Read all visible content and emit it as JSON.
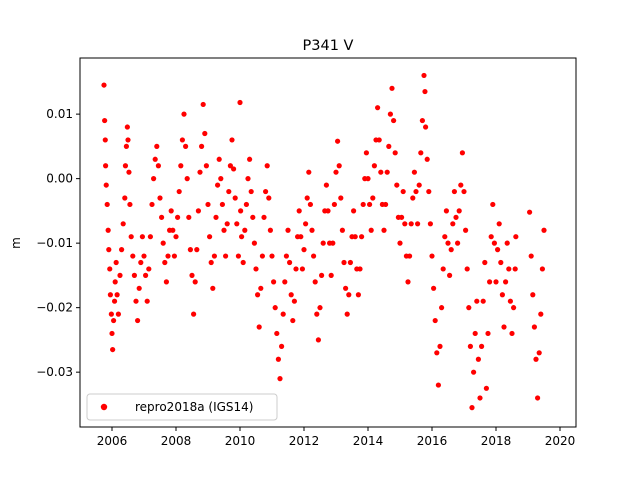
{
  "chart_data": {
    "type": "scatter",
    "title": "P341 V",
    "xlabel": "",
    "ylabel": "m",
    "xlim": [
      2005.0,
      2020.5
    ],
    "ylim": [
      -0.0385,
      0.0187
    ],
    "x_ticks": [
      2006,
      2008,
      2010,
      2012,
      2014,
      2016,
      2018,
      2020
    ],
    "x_tick_labels": [
      "2006",
      "2008",
      "2010",
      "2012",
      "2014",
      "2016",
      "2018",
      "2020"
    ],
    "y_ticks": [
      0.01,
      0.0,
      -0.01,
      -0.02,
      -0.03
    ],
    "y_tick_labels": [
      "0.01",
      "0.00",
      "−0.01",
      "−0.02",
      "−0.03"
    ],
    "grid": false,
    "legend_position": "lower-left",
    "series": [
      {
        "name": "repro2018a (IGS14)",
        "color": "#ff0000",
        "marker": "circle",
        "points": [
          [
            2005.75,
            0.0145
          ],
          [
            2005.77,
            0.009
          ],
          [
            2005.79,
            0.006
          ],
          [
            2005.8,
            0.002
          ],
          [
            2005.82,
            -0.001
          ],
          [
            2005.85,
            -0.004
          ],
          [
            2005.88,
            -0.008
          ],
          [
            2005.9,
            -0.011
          ],
          [
            2005.93,
            -0.014
          ],
          [
            2005.95,
            -0.018
          ],
          [
            2005.98,
            -0.021
          ],
          [
            2006.0,
            -0.024
          ],
          [
            2006.02,
            -0.0265
          ],
          [
            2006.05,
            -0.022
          ],
          [
            2006.08,
            -0.019
          ],
          [
            2006.1,
            -0.016
          ],
          [
            2006.13,
            -0.013
          ],
          [
            2006.16,
            -0.018
          ],
          [
            2006.2,
            -0.021
          ],
          [
            2006.25,
            -0.015
          ],
          [
            2006.3,
            -0.011
          ],
          [
            2006.35,
            -0.007
          ],
          [
            2006.4,
            -0.003
          ],
          [
            2006.42,
            0.002
          ],
          [
            2006.45,
            0.005
          ],
          [
            2006.48,
            0.008
          ],
          [
            2006.5,
            0.006
          ],
          [
            2006.53,
            0.001
          ],
          [
            2006.56,
            -0.004
          ],
          [
            2006.6,
            -0.009
          ],
          [
            2006.65,
            -0.012
          ],
          [
            2006.7,
            -0.015
          ],
          [
            2006.75,
            -0.019
          ],
          [
            2006.8,
            -0.022
          ],
          [
            2006.85,
            -0.017
          ],
          [
            2006.9,
            -0.013
          ],
          [
            2006.95,
            -0.009
          ],
          [
            2007.0,
            -0.012
          ],
          [
            2007.05,
            -0.015
          ],
          [
            2007.1,
            -0.019
          ],
          [
            2007.15,
            -0.014
          ],
          [
            2007.2,
            -0.009
          ],
          [
            2007.25,
            -0.004
          ],
          [
            2007.3,
            0.0
          ],
          [
            2007.35,
            0.003
          ],
          [
            2007.4,
            0.005
          ],
          [
            2007.45,
            0.002
          ],
          [
            2007.5,
            -0.003
          ],
          [
            2007.55,
            -0.006
          ],
          [
            2007.6,
            -0.01
          ],
          [
            2007.65,
            -0.013
          ],
          [
            2007.7,
            -0.016
          ],
          [
            2007.75,
            -0.012
          ],
          [
            2007.8,
            -0.008
          ],
          [
            2007.85,
            -0.005
          ],
          [
            2007.9,
            -0.008
          ],
          [
            2007.95,
            -0.012
          ],
          [
            2008.0,
            -0.009
          ],
          [
            2008.05,
            -0.006
          ],
          [
            2008.1,
            -0.002
          ],
          [
            2008.15,
            0.002
          ],
          [
            2008.2,
            0.006
          ],
          [
            2008.25,
            0.01
          ],
          [
            2008.3,
            0.005
          ],
          [
            2008.35,
            0.0
          ],
          [
            2008.4,
            -0.006
          ],
          [
            2008.45,
            -0.011
          ],
          [
            2008.5,
            -0.015
          ],
          [
            2008.55,
            -0.021
          ],
          [
            2008.6,
            -0.016
          ],
          [
            2008.65,
            -0.011
          ],
          [
            2008.7,
            -0.005
          ],
          [
            2008.75,
            0.001
          ],
          [
            2008.8,
            0.005
          ],
          [
            2008.85,
            0.0115
          ],
          [
            2008.9,
            0.007
          ],
          [
            2008.95,
            0.002
          ],
          [
            2009.0,
            -0.004
          ],
          [
            2009.05,
            -0.009
          ],
          [
            2009.1,
            -0.013
          ],
          [
            2009.15,
            -0.017
          ],
          [
            2009.2,
            -0.012
          ],
          [
            2009.25,
            -0.006
          ],
          [
            2009.3,
            -0.001
          ],
          [
            2009.35,
            0.003
          ],
          [
            2009.4,
            0.0
          ],
          [
            2009.45,
            -0.004
          ],
          [
            2009.5,
            -0.008
          ],
          [
            2009.55,
            -0.012
          ],
          [
            2009.6,
            -0.007
          ],
          [
            2009.65,
            -0.002
          ],
          [
            2009.7,
            0.002
          ],
          [
            2009.75,
            0.006
          ],
          [
            2009.8,
            0.0015
          ],
          [
            2009.85,
            -0.003
          ],
          [
            2009.9,
            -0.007
          ],
          [
            2009.95,
            -0.012
          ],
          [
            2010.0,
            0.0118
          ],
          [
            2010.02,
            -0.005
          ],
          [
            2010.05,
            -0.009
          ],
          [
            2010.1,
            -0.013
          ],
          [
            2010.15,
            -0.008
          ],
          [
            2010.2,
            -0.004
          ],
          [
            2010.25,
            0.0
          ],
          [
            2010.3,
            0.003
          ],
          [
            2010.35,
            -0.002
          ],
          [
            2010.4,
            -0.006
          ],
          [
            2010.45,
            -0.01
          ],
          [
            2010.5,
            -0.014
          ],
          [
            2010.55,
            -0.018
          ],
          [
            2010.6,
            -0.023
          ],
          [
            2010.65,
            -0.017
          ],
          [
            2010.7,
            -0.012
          ],
          [
            2010.75,
            -0.006
          ],
          [
            2010.8,
            -0.002
          ],
          [
            2010.85,
            0.002
          ],
          [
            2010.9,
            -0.003
          ],
          [
            2010.95,
            -0.008
          ],
          [
            2011.0,
            -0.012
          ],
          [
            2011.05,
            -0.016
          ],
          [
            2011.1,
            -0.02
          ],
          [
            2011.15,
            -0.024
          ],
          [
            2011.2,
            -0.028
          ],
          [
            2011.25,
            -0.031
          ],
          [
            2011.3,
            -0.026
          ],
          [
            2011.35,
            -0.021
          ],
          [
            2011.4,
            -0.016
          ],
          [
            2011.45,
            -0.012
          ],
          [
            2011.5,
            -0.008
          ],
          [
            2011.55,
            -0.013
          ],
          [
            2011.6,
            -0.018
          ],
          [
            2011.65,
            -0.022
          ],
          [
            2011.7,
            -0.019
          ],
          [
            2011.75,
            -0.014
          ],
          [
            2011.8,
            -0.009
          ],
          [
            2011.85,
            -0.005
          ],
          [
            2011.9,
            -0.009
          ],
          [
            2011.95,
            -0.014
          ],
          [
            2012.0,
            -0.011
          ],
          [
            2012.05,
            -0.007
          ],
          [
            2012.1,
            -0.003
          ],
          [
            2012.15,
            0.001
          ],
          [
            2012.2,
            -0.004
          ],
          [
            2012.25,
            -0.008
          ],
          [
            2012.3,
            -0.012
          ],
          [
            2012.35,
            -0.016
          ],
          [
            2012.4,
            -0.021
          ],
          [
            2012.45,
            -0.025
          ],
          [
            2012.5,
            -0.02
          ],
          [
            2012.55,
            -0.015
          ],
          [
            2012.6,
            -0.01
          ],
          [
            2012.65,
            -0.005
          ],
          [
            2012.7,
            -0.001
          ],
          [
            2012.75,
            -0.005
          ],
          [
            2012.8,
            -0.01
          ],
          [
            2012.85,
            -0.015
          ],
          [
            2012.9,
            -0.01
          ],
          [
            2012.95,
            -0.004
          ],
          [
            2013.0,
            0.001
          ],
          [
            2013.05,
            0.0058
          ],
          [
            2013.1,
            0.002
          ],
          [
            2013.15,
            -0.003
          ],
          [
            2013.2,
            -0.008
          ],
          [
            2013.25,
            -0.013
          ],
          [
            2013.3,
            -0.017
          ],
          [
            2013.35,
            -0.021
          ],
          [
            2013.4,
            -0.018
          ],
          [
            2013.45,
            -0.013
          ],
          [
            2013.5,
            -0.009
          ],
          [
            2013.55,
            -0.005
          ],
          [
            2013.6,
            -0.009
          ],
          [
            2013.65,
            -0.014
          ],
          [
            2013.7,
            -0.018
          ],
          [
            2013.75,
            -0.014
          ],
          [
            2013.8,
            -0.009
          ],
          [
            2013.85,
            -0.004
          ],
          [
            2013.9,
            0.0
          ],
          [
            2013.95,
            0.004
          ],
          [
            2014.0,
            0.0
          ],
          [
            2014.05,
            -0.004
          ],
          [
            2014.1,
            -0.008
          ],
          [
            2014.15,
            -0.003
          ],
          [
            2014.2,
            0.002
          ],
          [
            2014.25,
            0.006
          ],
          [
            2014.3,
            0.011
          ],
          [
            2014.35,
            0.006
          ],
          [
            2014.4,
            0.001
          ],
          [
            2014.45,
            -0.004
          ],
          [
            2014.5,
            -0.008
          ],
          [
            2014.55,
            -0.004
          ],
          [
            2014.6,
            0.001
          ],
          [
            2014.65,
            0.005
          ],
          [
            2014.7,
            0.01
          ],
          [
            2014.75,
            0.014
          ],
          [
            2014.8,
            0.009
          ],
          [
            2014.85,
            0.004
          ],
          [
            2014.9,
            -0.001
          ],
          [
            2014.95,
            -0.006
          ],
          [
            2015.0,
            -0.01
          ],
          [
            2015.05,
            -0.006
          ],
          [
            2015.1,
            -0.002
          ],
          [
            2015.15,
            -0.007
          ],
          [
            2015.2,
            -0.012
          ],
          [
            2015.25,
            -0.016
          ],
          [
            2015.3,
            -0.012
          ],
          [
            2015.35,
            -0.007
          ],
          [
            2015.4,
            -0.003
          ],
          [
            2015.45,
            0.001
          ],
          [
            2015.5,
            -0.002
          ],
          [
            2015.55,
            -0.007
          ],
          [
            2015.6,
            -0.001
          ],
          [
            2015.65,
            0.004
          ],
          [
            2015.7,
            0.009
          ],
          [
            2015.75,
            0.016
          ],
          [
            2015.78,
            0.0135
          ],
          [
            2015.8,
            0.008
          ],
          [
            2015.85,
            0.003
          ],
          [
            2015.9,
            -0.002
          ],
          [
            2015.95,
            -0.007
          ],
          [
            2016.0,
            -0.012
          ],
          [
            2016.05,
            -0.017
          ],
          [
            2016.1,
            -0.022
          ],
          [
            2016.15,
            -0.027
          ],
          [
            2016.2,
            -0.032
          ],
          [
            2016.25,
            -0.026
          ],
          [
            2016.3,
            -0.02
          ],
          [
            2016.35,
            -0.014
          ],
          [
            2016.4,
            -0.009
          ],
          [
            2016.45,
            -0.005
          ],
          [
            2016.5,
            -0.01
          ],
          [
            2016.55,
            -0.015
          ],
          [
            2016.6,
            -0.011
          ],
          [
            2016.65,
            -0.007
          ],
          [
            2016.7,
            -0.002
          ],
          [
            2016.75,
            -0.006
          ],
          [
            2016.8,
            -0.01
          ],
          [
            2016.85,
            -0.005
          ],
          [
            2016.9,
            -0.001
          ],
          [
            2016.95,
            0.004
          ],
          [
            2017.0,
            -0.002
          ],
          [
            2017.05,
            -0.008
          ],
          [
            2017.1,
            -0.014
          ],
          [
            2017.15,
            -0.02
          ],
          [
            2017.2,
            -0.026
          ],
          [
            2017.25,
            -0.0355
          ],
          [
            2017.3,
            -0.03
          ],
          [
            2017.35,
            -0.024
          ],
          [
            2017.4,
            -0.019
          ],
          [
            2017.45,
            -0.028
          ],
          [
            2017.5,
            -0.034
          ],
          [
            2017.55,
            -0.026
          ],
          [
            2017.6,
            -0.019
          ],
          [
            2017.65,
            -0.013
          ],
          [
            2017.7,
            -0.0325
          ],
          [
            2017.75,
            -0.024
          ],
          [
            2017.8,
            -0.016
          ],
          [
            2017.85,
            -0.009
          ],
          [
            2017.9,
            -0.004
          ],
          [
            2017.95,
            -0.01
          ],
          [
            2018.0,
            -0.016
          ],
          [
            2018.05,
            -0.011
          ],
          [
            2018.1,
            -0.007
          ],
          [
            2018.15,
            -0.013
          ],
          [
            2018.2,
            -0.018
          ],
          [
            2018.25,
            -0.023
          ],
          [
            2018.3,
            -0.016
          ],
          [
            2018.35,
            -0.01
          ],
          [
            2018.4,
            -0.014
          ],
          [
            2018.45,
            -0.019
          ],
          [
            2018.5,
            -0.024
          ],
          [
            2018.55,
            -0.02
          ],
          [
            2018.6,
            -0.014
          ],
          [
            2018.62,
            -0.009
          ],
          [
            2019.05,
            -0.0052
          ],
          [
            2019.1,
            -0.012
          ],
          [
            2019.15,
            -0.018
          ],
          [
            2019.2,
            -0.023
          ],
          [
            2019.25,
            -0.028
          ],
          [
            2019.3,
            -0.034
          ],
          [
            2019.35,
            -0.027
          ],
          [
            2019.4,
            -0.021
          ],
          [
            2019.45,
            -0.014
          ],
          [
            2019.5,
            -0.008
          ]
        ]
      }
    ]
  }
}
